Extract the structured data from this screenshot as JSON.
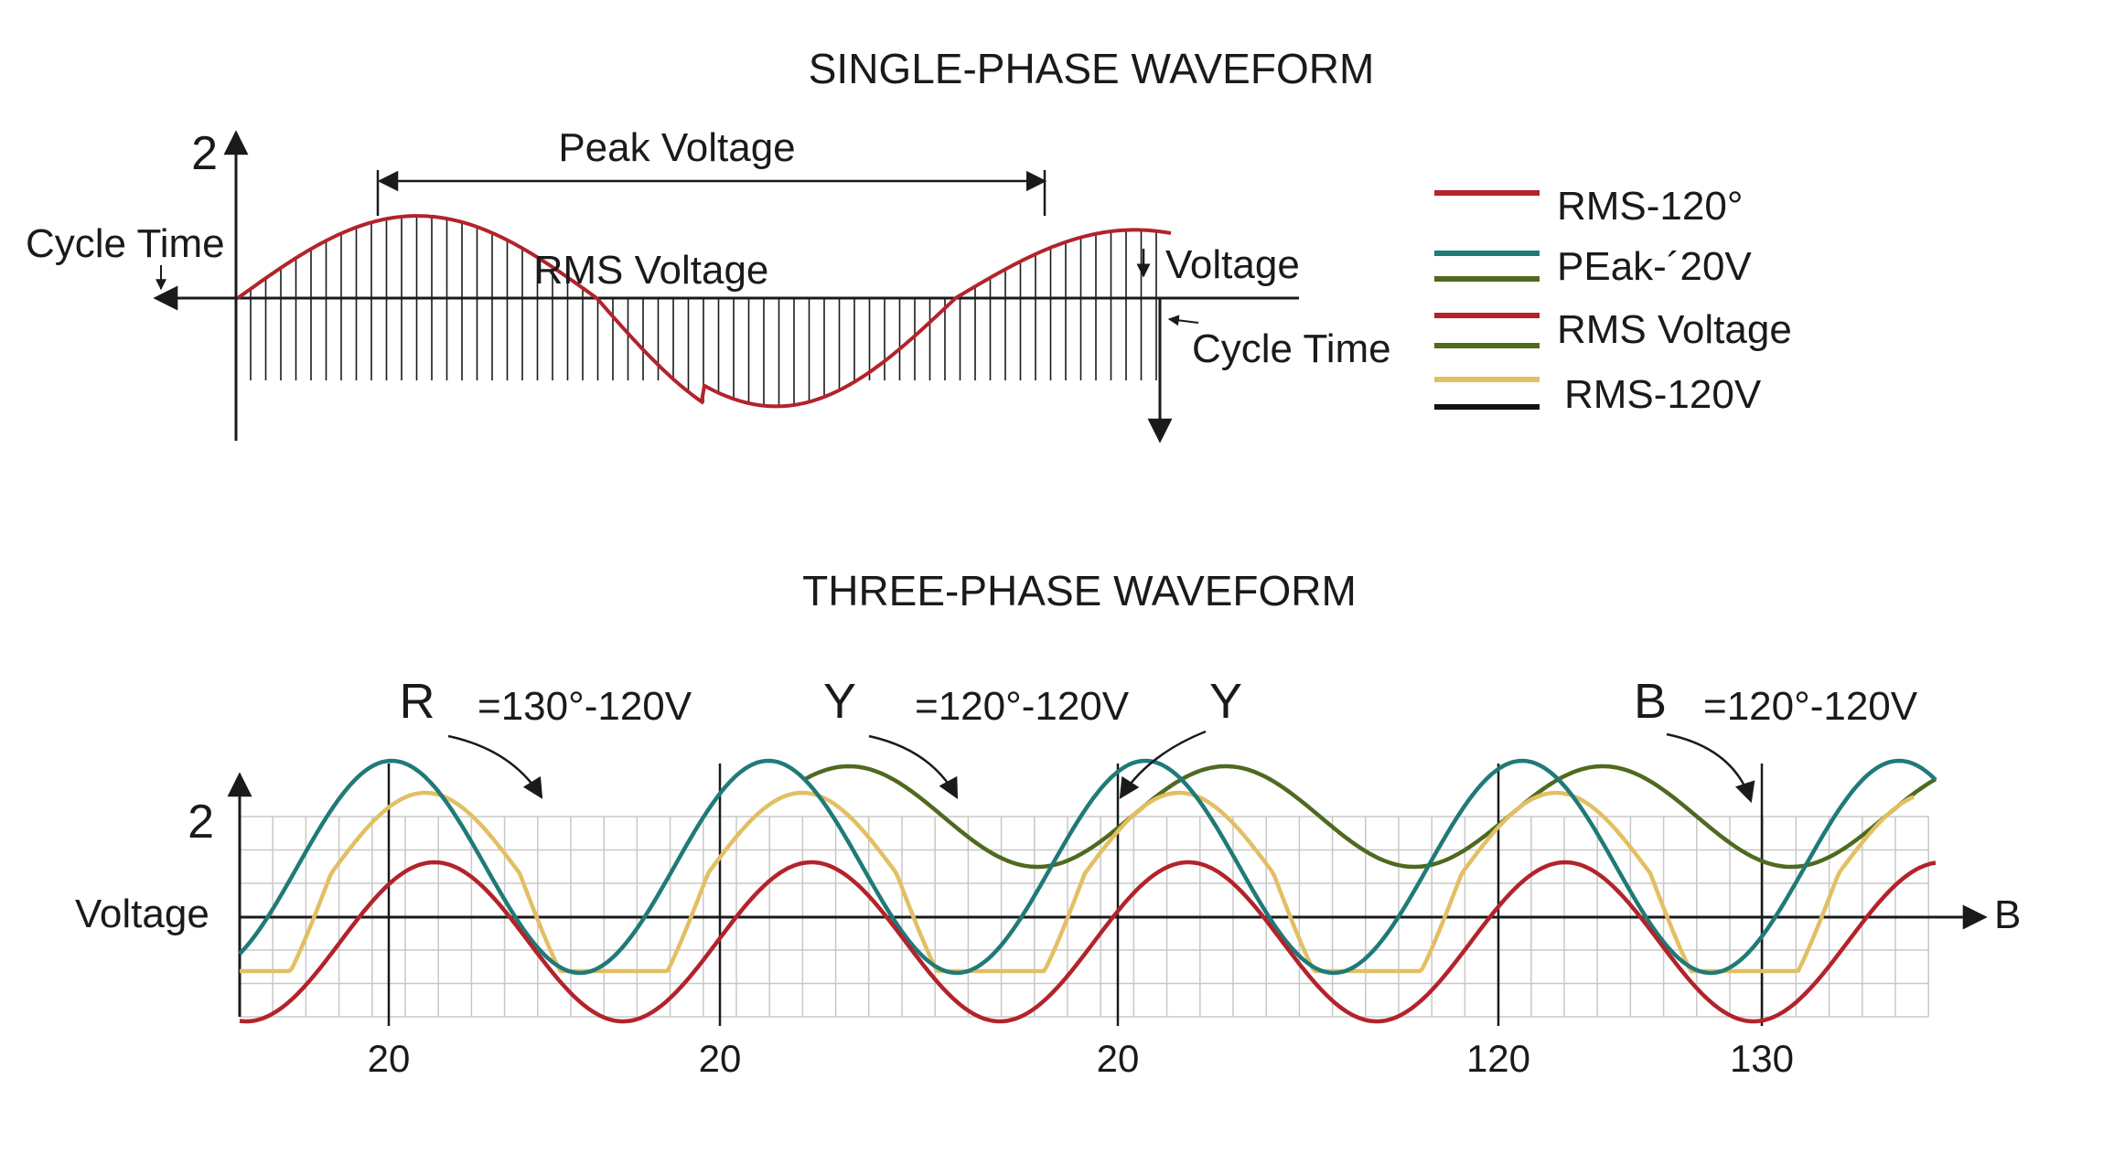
{
  "single_phase": {
    "title": "SINGLE-PHASE WAVEFORM",
    "y_tick": "2",
    "labels": {
      "peak_voltage": "Peak Voltage",
      "rms_voltage": "RMS Voltage",
      "cycle_time_left": "Cycle Time",
      "voltage": "Voltage",
      "cycle_time_right": "Cycle Time"
    },
    "wave_color": "#b3232a"
  },
  "legend": {
    "items": [
      {
        "label": "RMS-120°",
        "colors": [
          "#b3232a"
        ]
      },
      {
        "label": "PEak-´20V",
        "colors": [
          "#1f7a78",
          "#4f6a1f"
        ]
      },
      {
        "label": "RMS Voltage",
        "colors": [
          "#b3232a",
          "#4f6a1f"
        ]
      },
      {
        "label": "RMS-120V",
        "colors": [
          "#e3bf63",
          "#111111"
        ]
      }
    ]
  },
  "three_phase": {
    "title": "THREE-PHASE WAVEFORM",
    "y_tick": "2",
    "y_label": "Voltage",
    "x_axis_end_label": "B",
    "x_ticks": [
      "20",
      "20",
      "20",
      "120",
      "130"
    ],
    "phase_labels": [
      {
        "letter": "R",
        "text": "=130°-120V"
      },
      {
        "letter": "Y",
        "text": "=120°-120V"
      },
      {
        "letter": "Y",
        "text": ""
      },
      {
        "letter": "B",
        "text": "=120°-120V"
      }
    ],
    "colors": {
      "red": "#b3232a",
      "teal": "#1f7a78",
      "olive": "#4f6a1f",
      "yellow": "#e3bf63",
      "grid": "#c8c8c8"
    }
  }
}
